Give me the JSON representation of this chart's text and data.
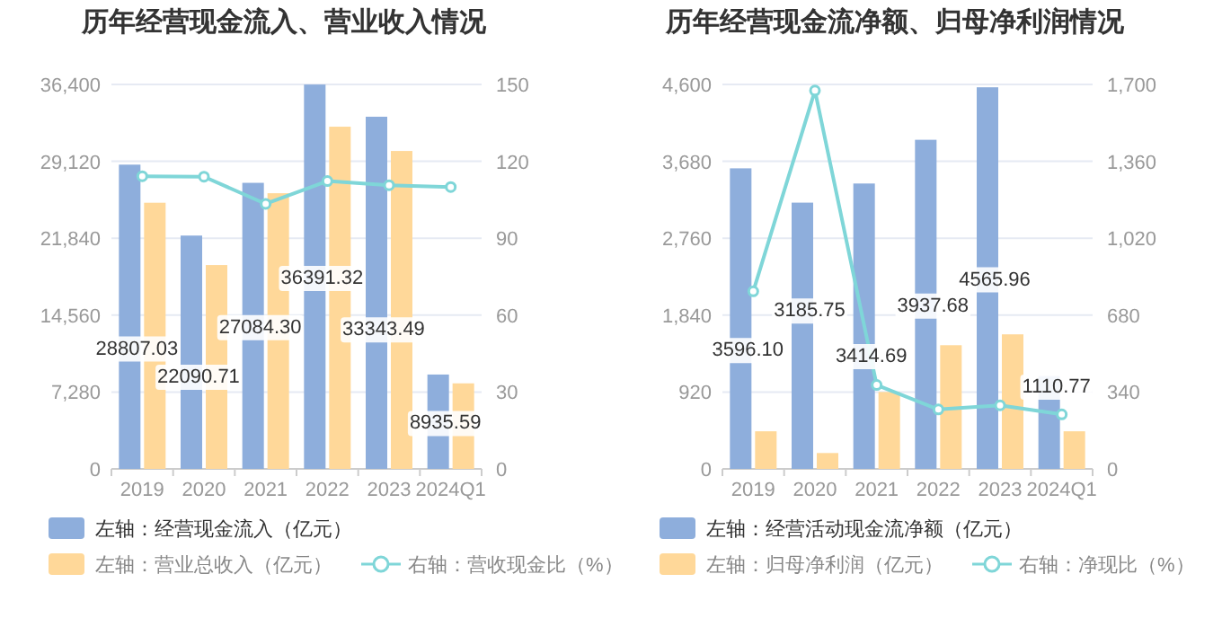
{
  "chart_data": [
    {
      "type": "bar",
      "title": "历年经营现金流入、营业收入情况",
      "categories": [
        "2019",
        "2020",
        "2021",
        "2022",
        "2023",
        "2024Q1"
      ],
      "series": [
        {
          "name": "左轴：经营现金流入（亿元）",
          "color": "#8eaedc",
          "values": [
            28807.03,
            22090.71,
            27084.3,
            36391.32,
            33343.49,
            8935.59
          ],
          "value_labels": [
            "28807.03",
            "22090.71",
            "27084.30",
            "36391.32",
            "33343.49",
            "8935.59"
          ]
        },
        {
          "name": "左轴：营业总收入（亿元）",
          "color": "#ffd899",
          "values": [
            25200,
            19300,
            26100,
            32400,
            30100,
            8100
          ]
        },
        {
          "name": "右轴：营收现金比（%）",
          "type": "line",
          "axis": "y2",
          "color": "#7fd6d8",
          "values": [
            114.2,
            114.0,
            103.4,
            112.3,
            110.7,
            110.0
          ]
        }
      ],
      "ylim": [
        0,
        36400
      ],
      "yticks": [
        {
          "value": 0,
          "label": "0"
        },
        {
          "value": 7280,
          "label": "7,280"
        },
        {
          "value": 14560,
          "label": "14,560"
        },
        {
          "value": 21840,
          "label": "21,840"
        },
        {
          "value": 29120,
          "label": "29,120"
        },
        {
          "value": 36400,
          "label": "36,400"
        }
      ],
      "y2lim": [
        0,
        150
      ],
      "y2ticks": [
        {
          "value": 0,
          "label": "0"
        },
        30,
        60,
        90,
        120,
        150
      ],
      "grid": "y",
      "legend": "bottom",
      "marker": "circle"
    },
    {
      "type": "bar",
      "title": "历年经营现金流净额、归母净利润情况",
      "categories": [
        "2019",
        "2020",
        "2021",
        "2022",
        "2023",
        "2024Q1"
      ],
      "series": [
        {
          "name": "左轴：经营活动现金流净额（亿元）",
          "color": "#8eaedc",
          "values": [
            3596.1,
            3185.75,
            3414.69,
            3937.68,
            4565.96,
            1110.77
          ],
          "value_labels": [
            "3596.10",
            "3185.75",
            "3414.69",
            "3937.68",
            "4565.96",
            "1110.77"
          ]
        },
        {
          "name": "左轴：归母净利润（亿元）",
          "color": "#ffd899",
          "values": [
            450,
            190,
            920,
            1480,
            1610,
            450
          ]
        },
        {
          "name": "右轴：净现比（%）",
          "type": "line",
          "axis": "y2",
          "color": "#7fd6d8",
          "values": [
            785,
            1673,
            371,
            263,
            281,
            241
          ]
        }
      ],
      "ylim": [
        0,
        4600
      ],
      "yticks": [
        {
          "value": 0,
          "label": "0"
        },
        920,
        {
          "value": 1840,
          "label": "1,840"
        },
        {
          "value": 2760,
          "label": "2,760"
        },
        {
          "value": 3680,
          "label": "3,680"
        },
        {
          "value": 4600,
          "label": "4,600"
        }
      ],
      "y2lim": [
        0,
        1700
      ],
      "y2ticks": [
        {
          "value": 0,
          "label": "0"
        },
        340,
        680,
        {
          "value": 1020,
          "label": "1,020"
        },
        {
          "value": 1360,
          "label": "1,360"
        },
        {
          "value": 1700,
          "label": "1,700"
        }
      ],
      "grid": "y",
      "legend": "bottom",
      "marker": "circle"
    }
  ]
}
